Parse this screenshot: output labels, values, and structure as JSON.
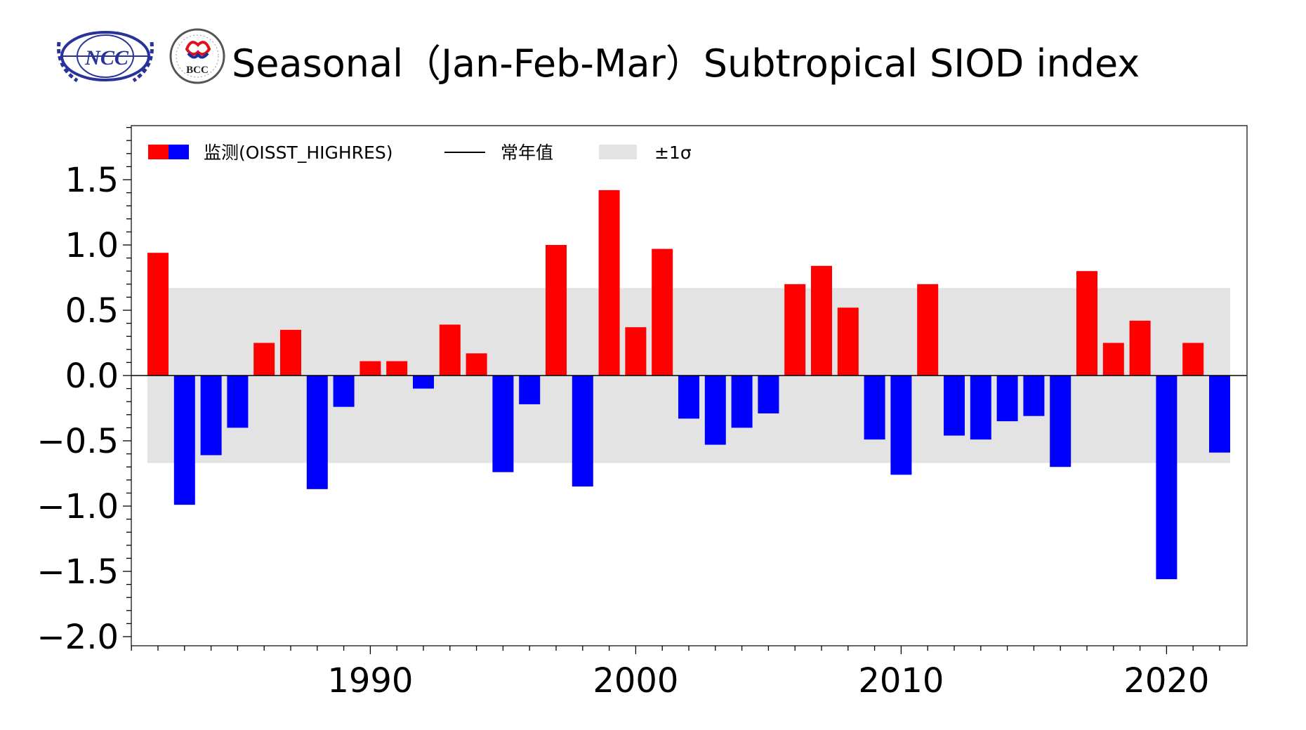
{
  "title": "Seasonal（Jan-Feb-Mar）Subtropical SIOD index",
  "logos": {
    "left": "NCC",
    "right": "BCC"
  },
  "legend": {
    "observed": "监测(OISST_HIGHRES)",
    "normal": "常年值",
    "sigma": "±1σ"
  },
  "colors": {
    "positive": "#ff0000",
    "negative": "#0000ff",
    "band": "#e3e3e3",
    "logo": "#27329a"
  },
  "chart_data": {
    "type": "bar",
    "title": "Seasonal（Jan-Feb-Mar）Subtropical SIOD index",
    "xlabel": "",
    "ylabel": "",
    "ylim": [
      -2.07,
      1.92
    ],
    "xlim": [
      1980.5,
      2023
    ],
    "yticks": [
      -2.0,
      -1.5,
      -1.0,
      -0.5,
      0.0,
      0.5,
      1.0,
      1.5
    ],
    "ytick_labels": [
      "−2.0",
      "−1.5",
      "−1.0",
      "−0.5",
      "0.0",
      "0.5",
      "1.0",
      "1.5"
    ],
    "xticks": [
      1990,
      2000,
      2010,
      2020
    ],
    "xtick_labels": [
      "1990",
      "2000",
      "2010",
      "2020"
    ],
    "sigma": 0.67,
    "normal": 0.0,
    "legend_position": "top-left",
    "x": [
      1982,
      1983,
      1984,
      1985,
      1986,
      1987,
      1988,
      1989,
      1990,
      1991,
      1992,
      1993,
      1994,
      1995,
      1996,
      1997,
      1998,
      1999,
      2000,
      2001,
      2002,
      2003,
      2004,
      2005,
      2006,
      2007,
      2008,
      2009,
      2010,
      2011,
      2012,
      2013,
      2014,
      2015,
      2016,
      2017,
      2018,
      2019,
      2020,
      2021,
      2022
    ],
    "values": [
      0.94,
      -0.99,
      -0.61,
      -0.4,
      0.25,
      0.35,
      -0.87,
      -0.24,
      0.11,
      0.11,
      -0.1,
      0.39,
      0.17,
      -0.74,
      -0.22,
      1.0,
      -0.85,
      1.42,
      0.37,
      0.97,
      -0.33,
      -0.53,
      -0.4,
      -0.29,
      0.7,
      0.84,
      0.52,
      -0.49,
      -0.76,
      0.7,
      -0.46,
      -0.49,
      -0.35,
      -0.31,
      -0.7,
      0.8,
      0.25,
      0.42,
      -1.56,
      0.25,
      -0.59
    ]
  }
}
